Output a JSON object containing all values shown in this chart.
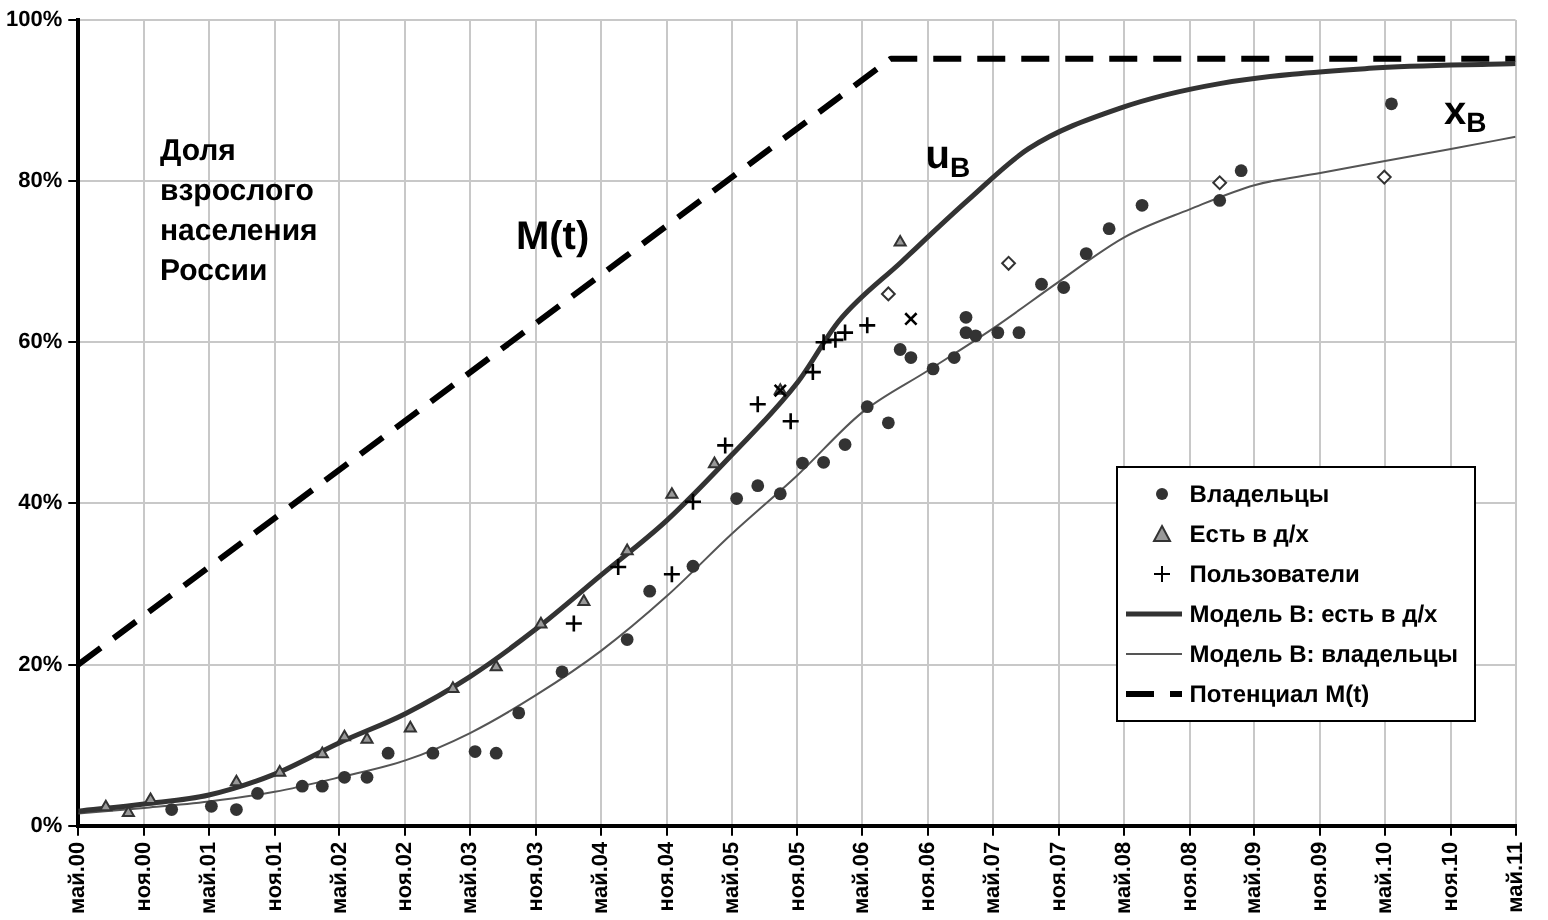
{
  "chart_data": {
    "type": "scatter",
    "xlim": [
      "2000-05",
      "2011-05"
    ],
    "xticks": [
      {
        "value": "2000-05",
        "label": "май.00"
      },
      {
        "value": "2000-11",
        "label": "ноя.00"
      },
      {
        "value": "2001-05",
        "label": "май.01"
      },
      {
        "value": "2001-11",
        "label": "ноя.01"
      },
      {
        "value": "2002-05",
        "label": "май.02"
      },
      {
        "value": "2002-11",
        "label": "ноя.02"
      },
      {
        "value": "2003-05",
        "label": "май.03"
      },
      {
        "value": "2003-11",
        "label": "ноя.03"
      },
      {
        "value": "2004-05",
        "label": "май.04"
      },
      {
        "value": "2004-11",
        "label": "ноя.04"
      },
      {
        "value": "2005-05",
        "label": "май.05"
      },
      {
        "value": "2005-11",
        "label": "ноя.05"
      },
      {
        "value": "2006-05",
        "label": "май.06"
      },
      {
        "value": "2006-11",
        "label": "ноя.06"
      },
      {
        "value": "2007-05",
        "label": "май.07"
      },
      {
        "value": "2007-11",
        "label": "ноя.07"
      },
      {
        "value": "2008-05",
        "label": "май.08"
      },
      {
        "value": "2008-11",
        "label": "ноя.08"
      },
      {
        "value": "2009-05",
        "label": "май.09"
      },
      {
        "value": "2009-11",
        "label": "ноя.09"
      },
      {
        "value": "2010-05",
        "label": "май.10"
      },
      {
        "value": "2010-11",
        "label": "ноя.10"
      },
      {
        "value": "2011-05",
        "label": "май.11"
      }
    ],
    "ylim": [
      0,
      100
    ],
    "yticks": [
      {
        "value": 0,
        "label": "0%"
      },
      {
        "value": 20,
        "label": "20%"
      },
      {
        "value": 40,
        "label": "40%"
      },
      {
        "value": 60,
        "label": "60%"
      },
      {
        "value": 80,
        "label": "80%"
      },
      {
        "value": 100,
        "label": "100%"
      }
    ],
    "grid": true,
    "legend": "bottom right",
    "series": [
      {
        "name": "Владельцы",
        "type": "scatter",
        "marker": "circle",
        "color": "#333333",
        "x": [
          "2001-01-17",
          "2001-05-08",
          "2001-07-17",
          "2001-09-14",
          "2002-01-17",
          "2002-03-14",
          "2002-05-15",
          "2002-07-17",
          "2002-09-14",
          "2003-01-17",
          "2003-05-15",
          "2003-07-13",
          "2003-09-14",
          "2004-01-13",
          "2004-07-13",
          "2004-09-14",
          "2005-01-13",
          "2005-05-15",
          "2005-07-13",
          "2005-09-14",
          "2005-11-15",
          "2006-01-13",
          "2006-03-14",
          "2006-05-15",
          "2006-07-13",
          "2006-08-15",
          "2006-09-14",
          "2006-11-15",
          "2007-01-13",
          "2007-02-15",
          "2007-02-15",
          "2007-03-14",
          "2007-05-15",
          "2007-07-13",
          "2007-09-14",
          "2007-11-15",
          "2008-01-17",
          "2008-03-21",
          "2008-06-21",
          "2009-01-24",
          "2009-03-25",
          "2010-05-19"
        ],
        "values": [
          2.0,
          2.4,
          2.0,
          4.0,
          4.9,
          4.9,
          6.0,
          6.0,
          9.0,
          9.0,
          9.2,
          9.0,
          14.0,
          19.1,
          23.1,
          29.1,
          32.2,
          40.6,
          42.2,
          41.2,
          45.0,
          45.1,
          47.3,
          52.0,
          50.0,
          59.1,
          58.1,
          56.7,
          58.1,
          63.1,
          61.2,
          60.8,
          61.2,
          61.2,
          67.2,
          66.8,
          71.0,
          74.1,
          77.0,
          77.6,
          81.3,
          89.6
        ]
      },
      {
        "name": "Есть в д/х",
        "type": "scatter",
        "marker": "triangle",
        "color": "#999999",
        "x": [
          "2000-07-17",
          "2000-09-18",
          "2000-11-19",
          "2001-07-17",
          "2001-11-15",
          "2002-03-14",
          "2002-05-15",
          "2002-07-17",
          "2002-11-15",
          "2003-03-14",
          "2003-07-13",
          "2003-11-15",
          "2004-03-14",
          "2004-07-13",
          "2004-11-15",
          "2005-03-14",
          "2005-09-14",
          "2006-08-15"
        ],
        "values": [
          2.3,
          1.6,
          3.2,
          5.4,
          6.6,
          8.9,
          11.0,
          10.7,
          12.1,
          17.0,
          19.7,
          25.0,
          27.8,
          34.1,
          41.1,
          44.9,
          54.0,
          72.4
        ]
      },
      {
        "name": "Пользователи",
        "type": "scatter",
        "marker": "cross",
        "color": "#000000",
        "x": [
          "2004-02-15",
          "2004-06-18",
          "2004-11-15",
          "2005-01-13",
          "2005-04-13",
          "2005-07-13",
          "2005-10-13",
          "2005-12-14",
          "2006-01-13",
          "2006-02-15",
          "2006-03-14",
          "2006-05-15"
        ],
        "values": [
          25.1,
          32.1,
          31.2,
          40.2,
          47.2,
          52.3,
          50.2,
          56.3,
          60.0,
          60.3,
          61.2,
          62.1
        ]
      },
      {
        "name": "Модель В: есть в д/х",
        "type": "line",
        "marker": "none",
        "line_style": "solid",
        "color": "#333333",
        "x": [
          "2000-05",
          "2000-11",
          "2001-05",
          "2001-11",
          "2002-05",
          "2002-11",
          "2003-05",
          "2003-11",
          "2004-05",
          "2004-11",
          "2005-05",
          "2005-11",
          "2006-02-26",
          "2006-08-19",
          "2007-02-22",
          "2007-08-08",
          "2008-04-17",
          "2009-01-24",
          "2010-03-18",
          "2011-05"
        ],
        "values": [
          1.8,
          2.7,
          3.8,
          6.4,
          10.3,
          13.9,
          18.5,
          24.4,
          31.1,
          37.9,
          46.0,
          55.0,
          62.7,
          70.0,
          77.7,
          84.0,
          89.0,
          92.1,
          94.0,
          94.6
        ]
      },
      {
        "name": "Модель В: владельцы",
        "type": "line",
        "marker": "none",
        "line_style": "solid",
        "color": "#555555",
        "x": [
          "2000-05",
          "2000-11",
          "2001-05",
          "2001-11",
          "2002-05",
          "2002-11",
          "2003-05",
          "2003-11",
          "2004-05",
          "2004-11",
          "2005-05",
          "2005-11",
          "2006-05",
          "2006-11",
          "2007-05",
          "2007-11",
          "2008-05",
          "2008-11",
          "2009-05",
          "2009-11",
          "2010-05",
          "2010-11",
          "2011-05"
        ],
        "values": [
          1.5,
          2.2,
          3.0,
          4.2,
          6.0,
          8.1,
          11.5,
          16.2,
          21.7,
          28.5,
          36.2,
          43.5,
          51.3,
          56.5,
          61.7,
          67.5,
          73.0,
          76.5,
          79.5,
          81.0,
          82.5,
          84.0,
          85.5
        ]
      },
      {
        "name": "Потенциал M(t)",
        "type": "line",
        "marker": "none",
        "line_style": "dashed",
        "color": "#000000",
        "x": [
          "2000-05",
          "2006-07-20",
          "2011-05"
        ],
        "values": [
          20,
          95.2,
          95.2
        ]
      },
      {
        "type": "scatter",
        "marker": "diamond",
        "color": "#ffffff",
        "x": [
          "2006-07-13",
          "2007-06-14",
          "2009-01-24",
          "2010-04-29"
        ],
        "values": [
          66.0,
          69.8,
          79.8,
          80.5
        ]
      },
      {
        "type": "scatter",
        "marker": "cross",
        "color": "#000000",
        "x": [
          "2005-09-14",
          "2006-09-14"
        ],
        "values": [
          54.0,
          62.9
        ]
      }
    ],
    "annotations": [
      "Доля взрослого населения России",
      "M(t)",
      "u$_{B}$",
      "x$_{B}$"
    ]
  }
}
